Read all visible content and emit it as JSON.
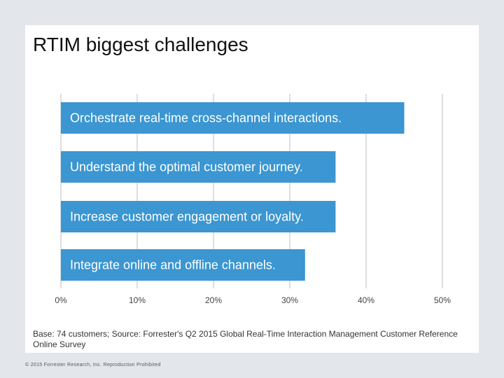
{
  "slide": {
    "title": "RTIM biggest challenges",
    "footnote": "Base: 74 customers; Source: Forrester's Q2 2015 Global Real-Time Interaction Management Customer Reference Online Survey",
    "copyright": "© 2015 Forrester Research, Inc. Reproduction Prohibited"
  },
  "chart_data": {
    "type": "bar",
    "orientation": "horizontal",
    "title": "RTIM biggest challenges",
    "categories": [
      "Orchestrate real-time cross-channel interactions.",
      "Understand the optimal customer journey.",
      "Increase customer engagement or loyalty.",
      "Integrate online and offline channels."
    ],
    "values": [
      45,
      36,
      36,
      32
    ],
    "unit": "%",
    "xlim": [
      0,
      50
    ],
    "ticks": [
      "0%",
      "10%",
      "20%",
      "30%",
      "40%",
      "50%"
    ],
    "tick_values": [
      0,
      10,
      20,
      30,
      40,
      50
    ],
    "grid": true,
    "labels_inside_bars": true,
    "bar_color": "#3b96d1",
    "grid_color": "#d3d3d3"
  }
}
